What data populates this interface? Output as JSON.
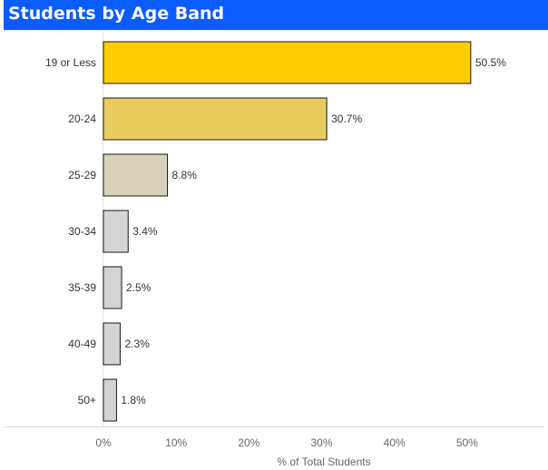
{
  "title": "Students by Age Band",
  "chart_data": {
    "type": "bar",
    "orientation": "horizontal",
    "categories": [
      "19 or Less",
      "20-24",
      "25-29",
      "30-34",
      "35-39",
      "40-49",
      "50+"
    ],
    "values": [
      50.5,
      30.7,
      8.8,
      3.4,
      2.5,
      2.3,
      1.8
    ],
    "value_labels": [
      "50.5%",
      "30.7%",
      "8.8%",
      "3.4%",
      "2.5%",
      "2.3%",
      "1.8%"
    ],
    "bar_colors": [
      "#ffcc00",
      "#e8cc60",
      "#d8d2b8",
      "#d4d4d4",
      "#d4d4d4",
      "#d4d4d4",
      "#d4d4d4"
    ],
    "xlabel": "% of Total Students",
    "xlim": [
      0,
      59
    ],
    "xticks": [
      0,
      10,
      20,
      30,
      40,
      50
    ],
    "xtick_labels": [
      "0%",
      "10%",
      "20%",
      "30%",
      "40%",
      "50%"
    ],
    "grid": false
  }
}
